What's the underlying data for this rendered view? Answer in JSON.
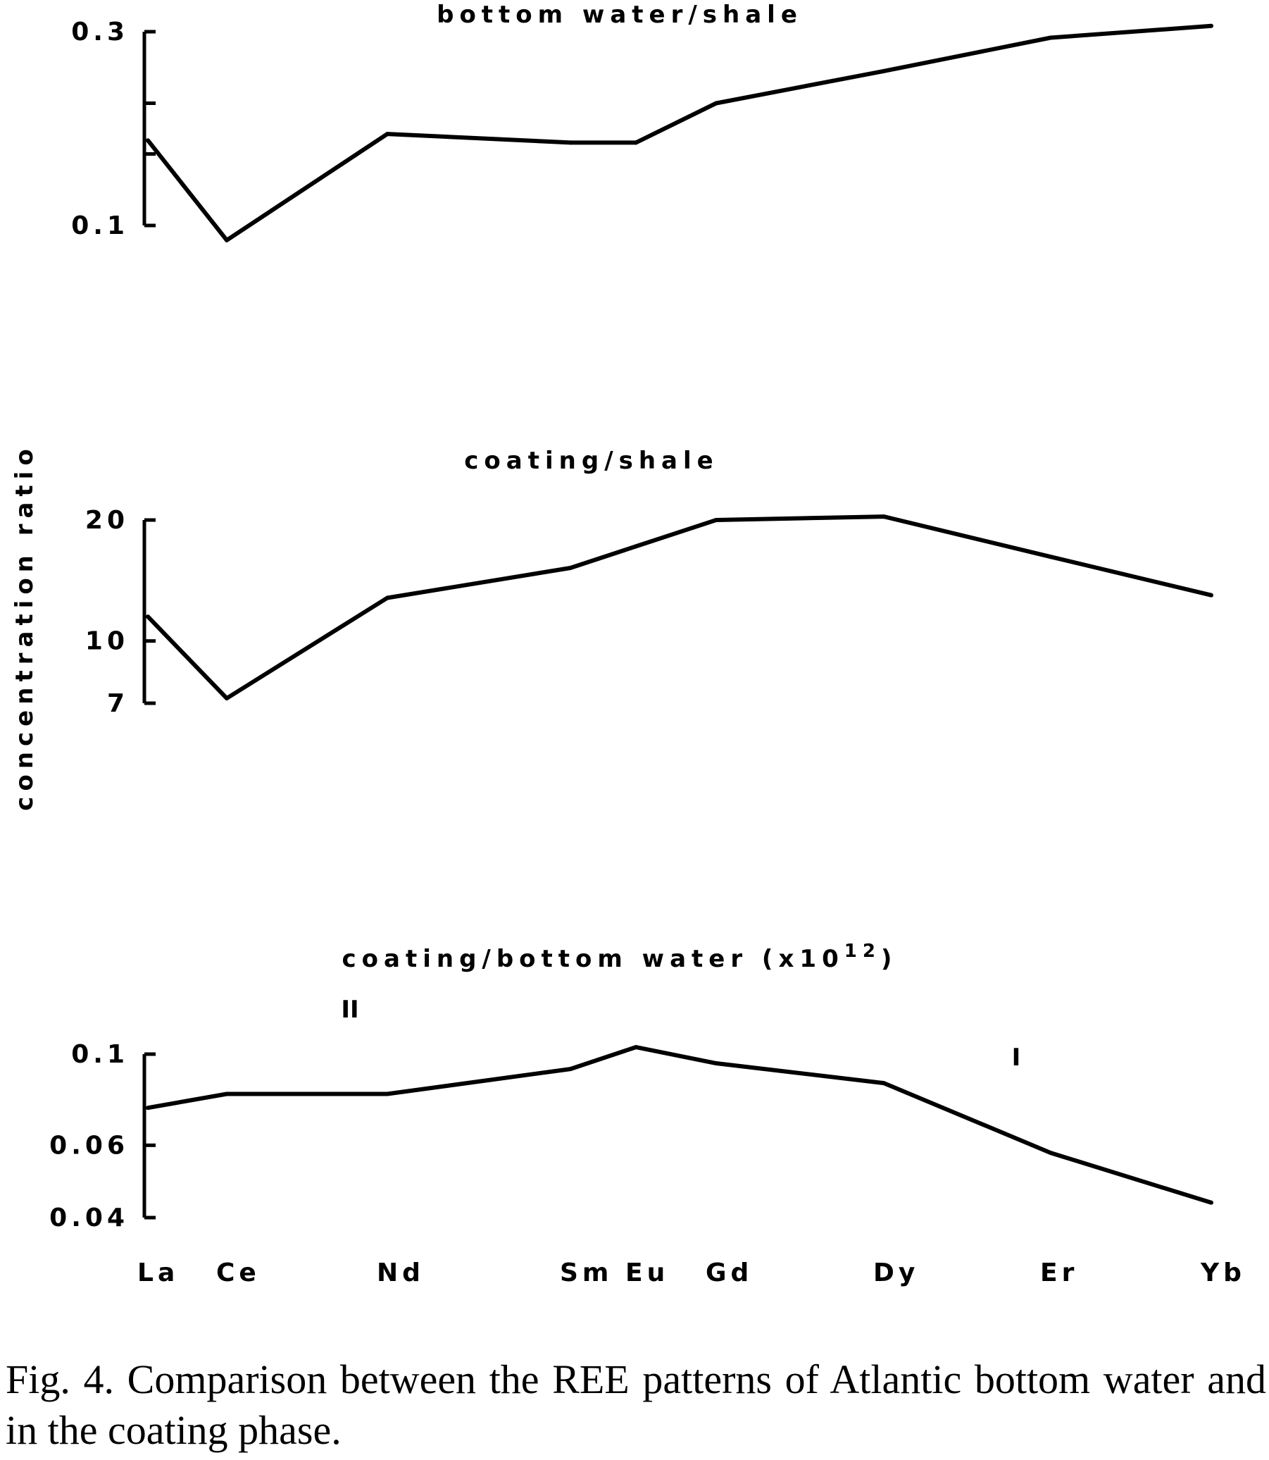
{
  "chart_data": [
    {
      "type": "line",
      "title": "bottom water/shale",
      "categories": [
        "La",
        "Ce",
        "Nd",
        "Sm",
        "Eu",
        "Gd",
        "Dy",
        "Er",
        "Yb"
      ],
      "x_positions": [
        "La",
        "Ce",
        "",
        "Nd",
        "",
        "Sm",
        "Eu",
        "Gd",
        "",
        "Dy",
        "",
        "Er",
        "",
        "Yb"
      ],
      "scale": "log",
      "ylim": [
        0.1,
        0.3
      ],
      "yticks": [
        0.1,
        0.15,
        0.2,
        0.3
      ],
      "ytick_labels": [
        "0.1",
        "",
        "",
        "0.3"
      ],
      "series": [
        {
          "points": [
            [
              "La",
              0.162
            ],
            [
              "Ce",
              0.092
            ],
            [
              "Nd",
              0.168
            ],
            [
              "Sm",
              0.16
            ],
            [
              "Eu",
              0.16
            ],
            [
              "Gd",
              0.2
            ],
            [
              "Dy",
              0.24
            ],
            [
              "Er",
              0.29
            ],
            [
              "Yb",
              0.31
            ]
          ]
        }
      ],
      "grid": false
    },
    {
      "type": "line",
      "title": "coating/shale",
      "categories": [
        "La",
        "Ce",
        "Nd",
        "Sm",
        "Eu",
        "Gd",
        "Dy",
        "Er",
        "Yb"
      ],
      "scale": "log",
      "ylim": [
        7,
        20
      ],
      "yticks": [
        7,
        10,
        20
      ],
      "ytick_labels": [
        "7",
        "10",
        "20"
      ],
      "series": [
        {
          "points": [
            [
              "La",
              11.5
            ],
            [
              "Ce",
              7.2
            ],
            [
              "Nd",
              12.8
            ],
            [
              "Sm",
              15.2
            ],
            [
              "Eu",
              17.2
            ],
            [
              "Gd",
              20.0
            ],
            [
              "Dy",
              20.4
            ],
            [
              "Er",
              16.2
            ],
            [
              "Yb",
              13.0
            ]
          ]
        }
      ],
      "grid": false
    },
    {
      "type": "line",
      "title": "coating/bottom water (x10",
      "title_sup": "12",
      "title_end": ")",
      "categories": [
        "La",
        "Ce",
        "Nd",
        "Sm",
        "Eu",
        "Gd",
        "Dy",
        "Er",
        "Yb"
      ],
      "scale": "log",
      "ylim": [
        0.04,
        0.1
      ],
      "yticks": [
        0.04,
        0.06,
        0.1
      ],
      "ytick_labels": [
        "0.04",
        "0.06",
        "0.1"
      ],
      "series": [
        {
          "points": [
            [
              "La",
              0.074
            ],
            [
              "Ce",
              0.08
            ],
            [
              "Nd",
              0.08
            ],
            [
              "Sm",
              0.092
            ],
            [
              "Eu",
              0.104
            ],
            [
              "Gd",
              0.095
            ],
            [
              "Dy",
              0.085
            ],
            [
              "Er",
              0.0575
            ],
            [
              "Yb",
              0.0435
            ]
          ]
        }
      ],
      "marks": [
        {
          "text": "II",
          "near": "Nd"
        },
        {
          "text": "I",
          "near": "Er"
        }
      ],
      "grid": false
    }
  ],
  "ylabel": "concentration ratio",
  "x_tick_labels": [
    "La",
    "Ce",
    "Nd",
    "Sm",
    "Eu",
    "Gd",
    "Dy",
    "Er",
    "Yb"
  ],
  "caption": "Fig. 4. Comparison between the REE patterns of Atlantic bottom water and in the coating phase."
}
